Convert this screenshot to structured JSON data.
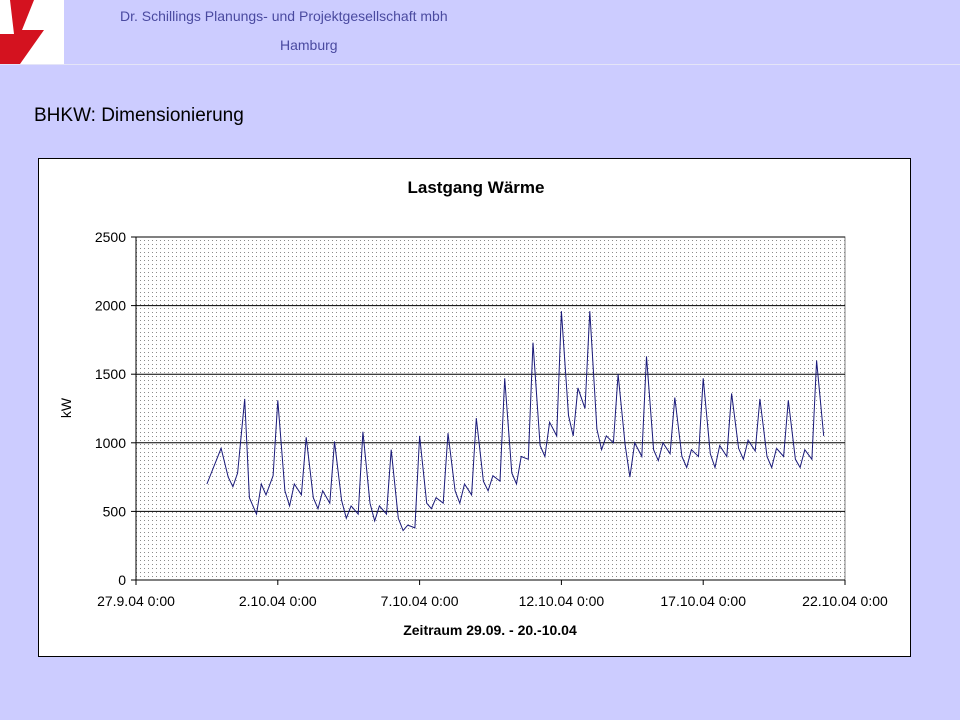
{
  "header": {
    "company": "Dr. Schillings Planungs- und Projektgesellschaft mbh",
    "city": "Hamburg",
    "logo_colors": [
      "#d4121f",
      "#ffffff"
    ]
  },
  "slide": {
    "title": "BHKW: Dimensionierung"
  },
  "chart_data": {
    "type": "line",
    "title": "Lastgang Wärme",
    "xlabel": "Zeitraum 29.09. - 20.-10.04",
    "ylabel": "kW",
    "ylim": [
      0,
      2500
    ],
    "yticks": [
      0,
      500,
      1000,
      1500,
      2000,
      2500
    ],
    "xlim": [
      "2004-09-27",
      "2004-10-22"
    ],
    "xticks": [
      "27.9.04 0:00",
      "2.10.04 0:00",
      "7.10.04 0:00",
      "12.10.04 0:00",
      "17.10.04 0:00",
      "22.10.04 0:00"
    ],
    "grid": "horizontal",
    "legend": "none",
    "series": [
      {
        "color": "#1a1a7a",
        "x": [
          "2004-09-29 12:00",
          "2004-09-30 00:00",
          "2004-09-30 06:00",
          "2004-09-30 10:00",
          "2004-09-30 14:00",
          "2004-09-30 20:00",
          "2004-10-01 00:00",
          "2004-10-01 06:00",
          "2004-10-01 10:00",
          "2004-10-01 14:00",
          "2004-10-01 20:00",
          "2004-10-02 00:00",
          "2004-10-02 06:00",
          "2004-10-02 10:00",
          "2004-10-02 14:00",
          "2004-10-02 20:00",
          "2004-10-03 00:00",
          "2004-10-03 06:00",
          "2004-10-03 10:00",
          "2004-10-03 14:00",
          "2004-10-03 20:00",
          "2004-10-04 00:00",
          "2004-10-04 06:00",
          "2004-10-04 10:00",
          "2004-10-04 14:00",
          "2004-10-04 20:00",
          "2004-10-05 00:00",
          "2004-10-05 06:00",
          "2004-10-05 10:00",
          "2004-10-05 14:00",
          "2004-10-05 20:00",
          "2004-10-06 00:00",
          "2004-10-06 06:00",
          "2004-10-06 10:00",
          "2004-10-06 14:00",
          "2004-10-06 20:00",
          "2004-10-07 00:00",
          "2004-10-07 06:00",
          "2004-10-07 10:00",
          "2004-10-07 14:00",
          "2004-10-07 20:00",
          "2004-10-08 00:00",
          "2004-10-08 06:00",
          "2004-10-08 10:00",
          "2004-10-08 14:00",
          "2004-10-08 20:00",
          "2004-10-09 00:00",
          "2004-10-09 06:00",
          "2004-10-09 10:00",
          "2004-10-09 14:00",
          "2004-10-09 20:00",
          "2004-10-10 00:00",
          "2004-10-10 06:00",
          "2004-10-10 10:00",
          "2004-10-10 14:00",
          "2004-10-10 20:00",
          "2004-10-11 00:00",
          "2004-10-11 06:00",
          "2004-10-11 10:00",
          "2004-10-11 14:00",
          "2004-10-11 20:00",
          "2004-10-12 00:00",
          "2004-10-12 06:00",
          "2004-10-12 10:00",
          "2004-10-12 14:00",
          "2004-10-12 20:00",
          "2004-10-13 00:00",
          "2004-10-13 06:00",
          "2004-10-13 10:00",
          "2004-10-13 14:00",
          "2004-10-13 20:00",
          "2004-10-14 00:00",
          "2004-10-14 06:00",
          "2004-10-14 10:00",
          "2004-10-14 14:00",
          "2004-10-14 20:00",
          "2004-10-15 00:00",
          "2004-10-15 06:00",
          "2004-10-15 10:00",
          "2004-10-15 14:00",
          "2004-10-15 20:00",
          "2004-10-16 00:00",
          "2004-10-16 06:00",
          "2004-10-16 10:00",
          "2004-10-16 14:00",
          "2004-10-16 20:00",
          "2004-10-17 00:00",
          "2004-10-17 06:00",
          "2004-10-17 10:00",
          "2004-10-17 14:00",
          "2004-10-17 20:00",
          "2004-10-18 00:00",
          "2004-10-18 06:00",
          "2004-10-18 10:00",
          "2004-10-18 14:00",
          "2004-10-18 20:00",
          "2004-10-19 00:00",
          "2004-10-19 06:00",
          "2004-10-19 10:00",
          "2004-10-19 14:00",
          "2004-10-19 20:00",
          "2004-10-20 00:00",
          "2004-10-20 06:00",
          "2004-10-20 10:00",
          "2004-10-20 14:00",
          "2004-10-20 20:00",
          "2004-10-21 00:00",
          "2004-10-21 06:00"
        ],
        "y": [
          700,
          960,
          750,
          680,
          780,
          1320,
          600,
          480,
          700,
          620,
          760,
          1310,
          650,
          540,
          700,
          620,
          1040,
          600,
          520,
          650,
          560,
          1010,
          580,
          450,
          540,
          480,
          1080,
          560,
          430,
          540,
          480,
          950,
          450,
          360,
          400,
          380,
          1050,
          560,
          520,
          600,
          560,
          1070,
          650,
          560,
          700,
          620,
          1180,
          720,
          650,
          760,
          720,
          1470,
          780,
          700,
          900,
          880,
          1730,
          980,
          900,
          1150,
          1050,
          1960,
          1200,
          1050,
          1400,
          1250,
          1960,
          1100,
          950,
          1050,
          1000,
          1500,
          980,
          750,
          1000,
          900,
          1630,
          950,
          870,
          1000,
          920,
          1330,
          900,
          820,
          950,
          900,
          1470,
          920,
          820,
          980,
          900,
          1360,
          960,
          880,
          1020,
          940,
          1320,
          900,
          820,
          960,
          900,
          1310,
          880,
          820,
          950,
          880,
          1600,
          1050
        ]
      }
    ]
  }
}
